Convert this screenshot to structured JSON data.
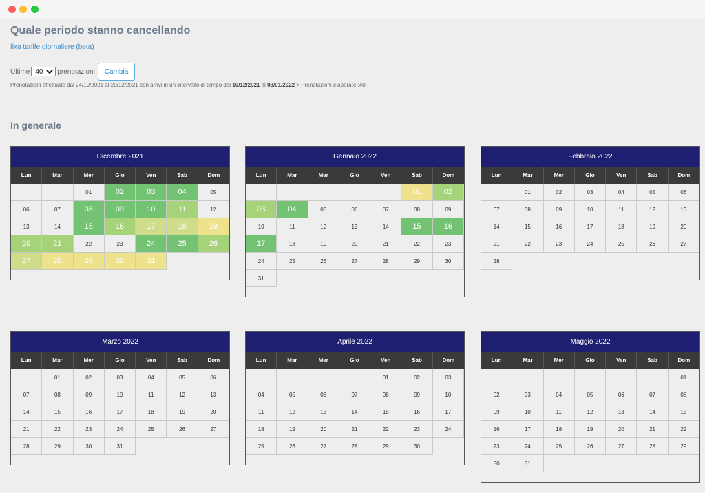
{
  "page": {
    "title": "Quale periodo stanno cancellando",
    "beta_link": "fixa tariffe giornaliere (beta)",
    "ultime_label": "Ultime",
    "selected_count": "40",
    "prenotazioni_label": "prenotazioni",
    "cambia_label": "Cambia",
    "summary": {
      "prefix": "Prenotazioni effettuate dal 24/10/2021 al 20/12/2021 con arrivi in un intervallo di tempo dal",
      "date_from": "10/12/2021",
      "mid": "al",
      "date_to": "03/01/2022",
      "suffix": "> Prenotazioni elaborate :40"
    },
    "section_title": "In generale"
  },
  "weekdays": [
    "Lun",
    "Mar",
    "Mer",
    "Gio",
    "Ven",
    "Sab",
    "Dom"
  ],
  "colors": {
    "header": "#1f1f72",
    "weekday_bar": "#3a3a3a",
    "g1": "#74c274",
    "g2": "#a6d27a",
    "y1": "#cfdd8a",
    "y2": "#eee38c"
  },
  "calendars": [
    {
      "name": "Dicembre 2021",
      "offset": 2,
      "days": 31,
      "highlights": {
        "2": "g1",
        "3": "g1",
        "4": "g1",
        "8": "g1",
        "9": "g1",
        "10": "g1",
        "11": "g2",
        "15": "g1",
        "16": "g2",
        "17": "y1",
        "18": "y1",
        "19": "y2",
        "20": "g2",
        "21": "g2",
        "24": "g1",
        "25": "g1",
        "26": "g2",
        "27": "y1",
        "28": "y2",
        "29": "y2",
        "30": "y2",
        "31": "y2"
      }
    },
    {
      "name": "Gennaio 2022",
      "offset": 5,
      "days": 31,
      "highlights": {
        "1": "y2",
        "2": "g2",
        "3": "g2",
        "4": "g1",
        "15": "g1",
        "16": "g1",
        "17": "g1"
      }
    },
    {
      "name": "Febbraio 2022",
      "offset": 1,
      "days": 28,
      "highlights": {}
    },
    {
      "name": "Marzo 2022",
      "offset": 1,
      "days": 31,
      "highlights": {}
    },
    {
      "name": "Aprile 2022",
      "offset": 4,
      "days": 30,
      "highlights": {}
    },
    {
      "name": "Maggio 2022",
      "offset": 6,
      "days": 31,
      "highlights": {}
    }
  ]
}
